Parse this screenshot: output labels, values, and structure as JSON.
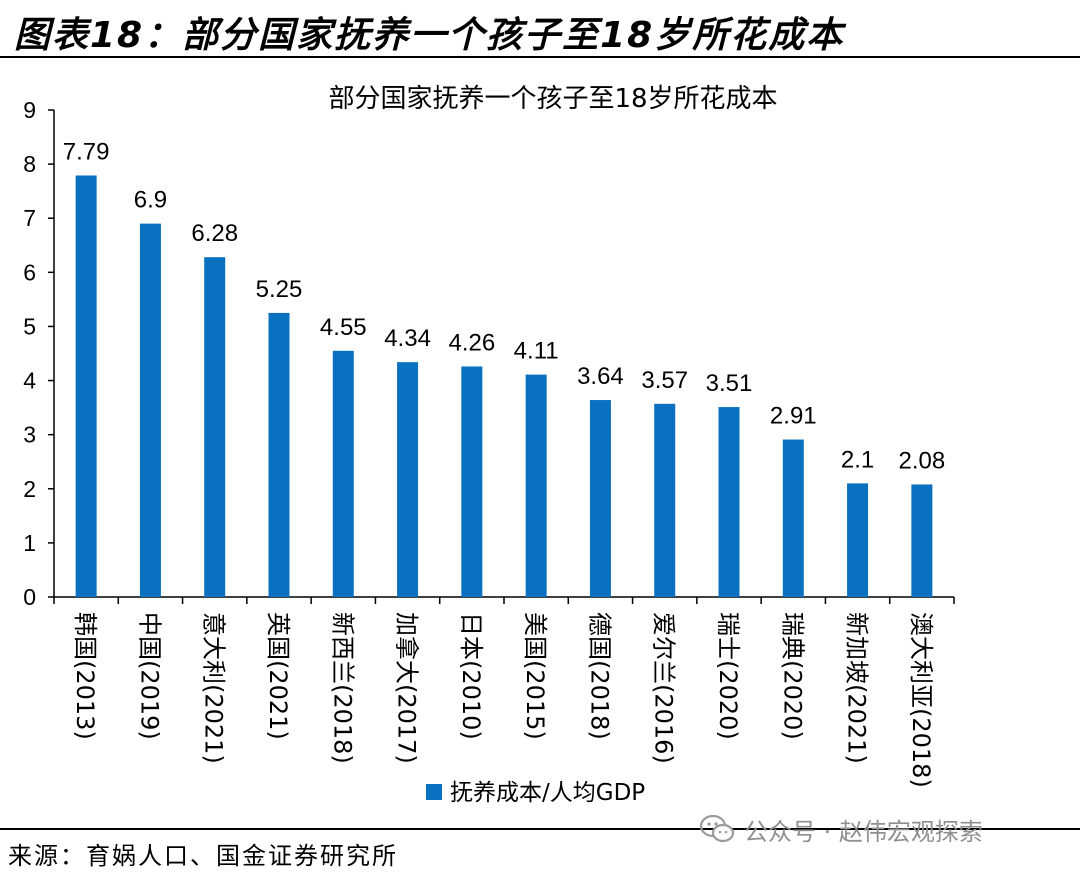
{
  "header": {
    "title": "图表18：部分国家抚养一个孩子至18岁所花成本"
  },
  "source": {
    "text": "来源：育娲人口、国金证券研究所"
  },
  "watermark": {
    "text": "公众号 · 赵伟宏观探索",
    "icon": "wechat-icon"
  },
  "colors": {
    "bar": "#0a71c0",
    "axis": "#000000"
  },
  "chart_data": {
    "type": "bar",
    "title": "部分国家抚养一个孩子至18岁所花成本",
    "xlabel": "",
    "ylabel": "",
    "ylim": [
      0,
      9
    ],
    "yticks": [
      "0",
      "1",
      "2",
      "3",
      "4",
      "5",
      "6",
      "7",
      "8",
      "9"
    ],
    "grid": false,
    "legend_position": "bottom-center",
    "categories": [
      "韩国(2013)",
      "中国(2019)",
      "意大利(2021)",
      "英国(2021)",
      "新西兰(2018)",
      "加拿大(2017)",
      "日本(2010)",
      "美国(2015)",
      "德国(2018)",
      "爱尔兰(2016)",
      "瑞士(2020)",
      "瑞典(2020)",
      "新加坡(2021)",
      "澳大利亚(2018)"
    ],
    "series": [
      {
        "name": "抚养成本/人均GDP",
        "values": [
          7.79,
          6.9,
          6.28,
          5.25,
          4.55,
          4.34,
          4.26,
          4.11,
          3.64,
          3.57,
          3.51,
          2.91,
          2.1,
          2.08
        ],
        "data_labels": [
          "7.79",
          "6.9",
          "6.28",
          "5.25",
          "4.55",
          "4.34",
          "4.26",
          "4.11",
          "3.64",
          "3.57",
          "3.51",
          "2.91",
          "2.1",
          "2.08"
        ]
      }
    ]
  }
}
